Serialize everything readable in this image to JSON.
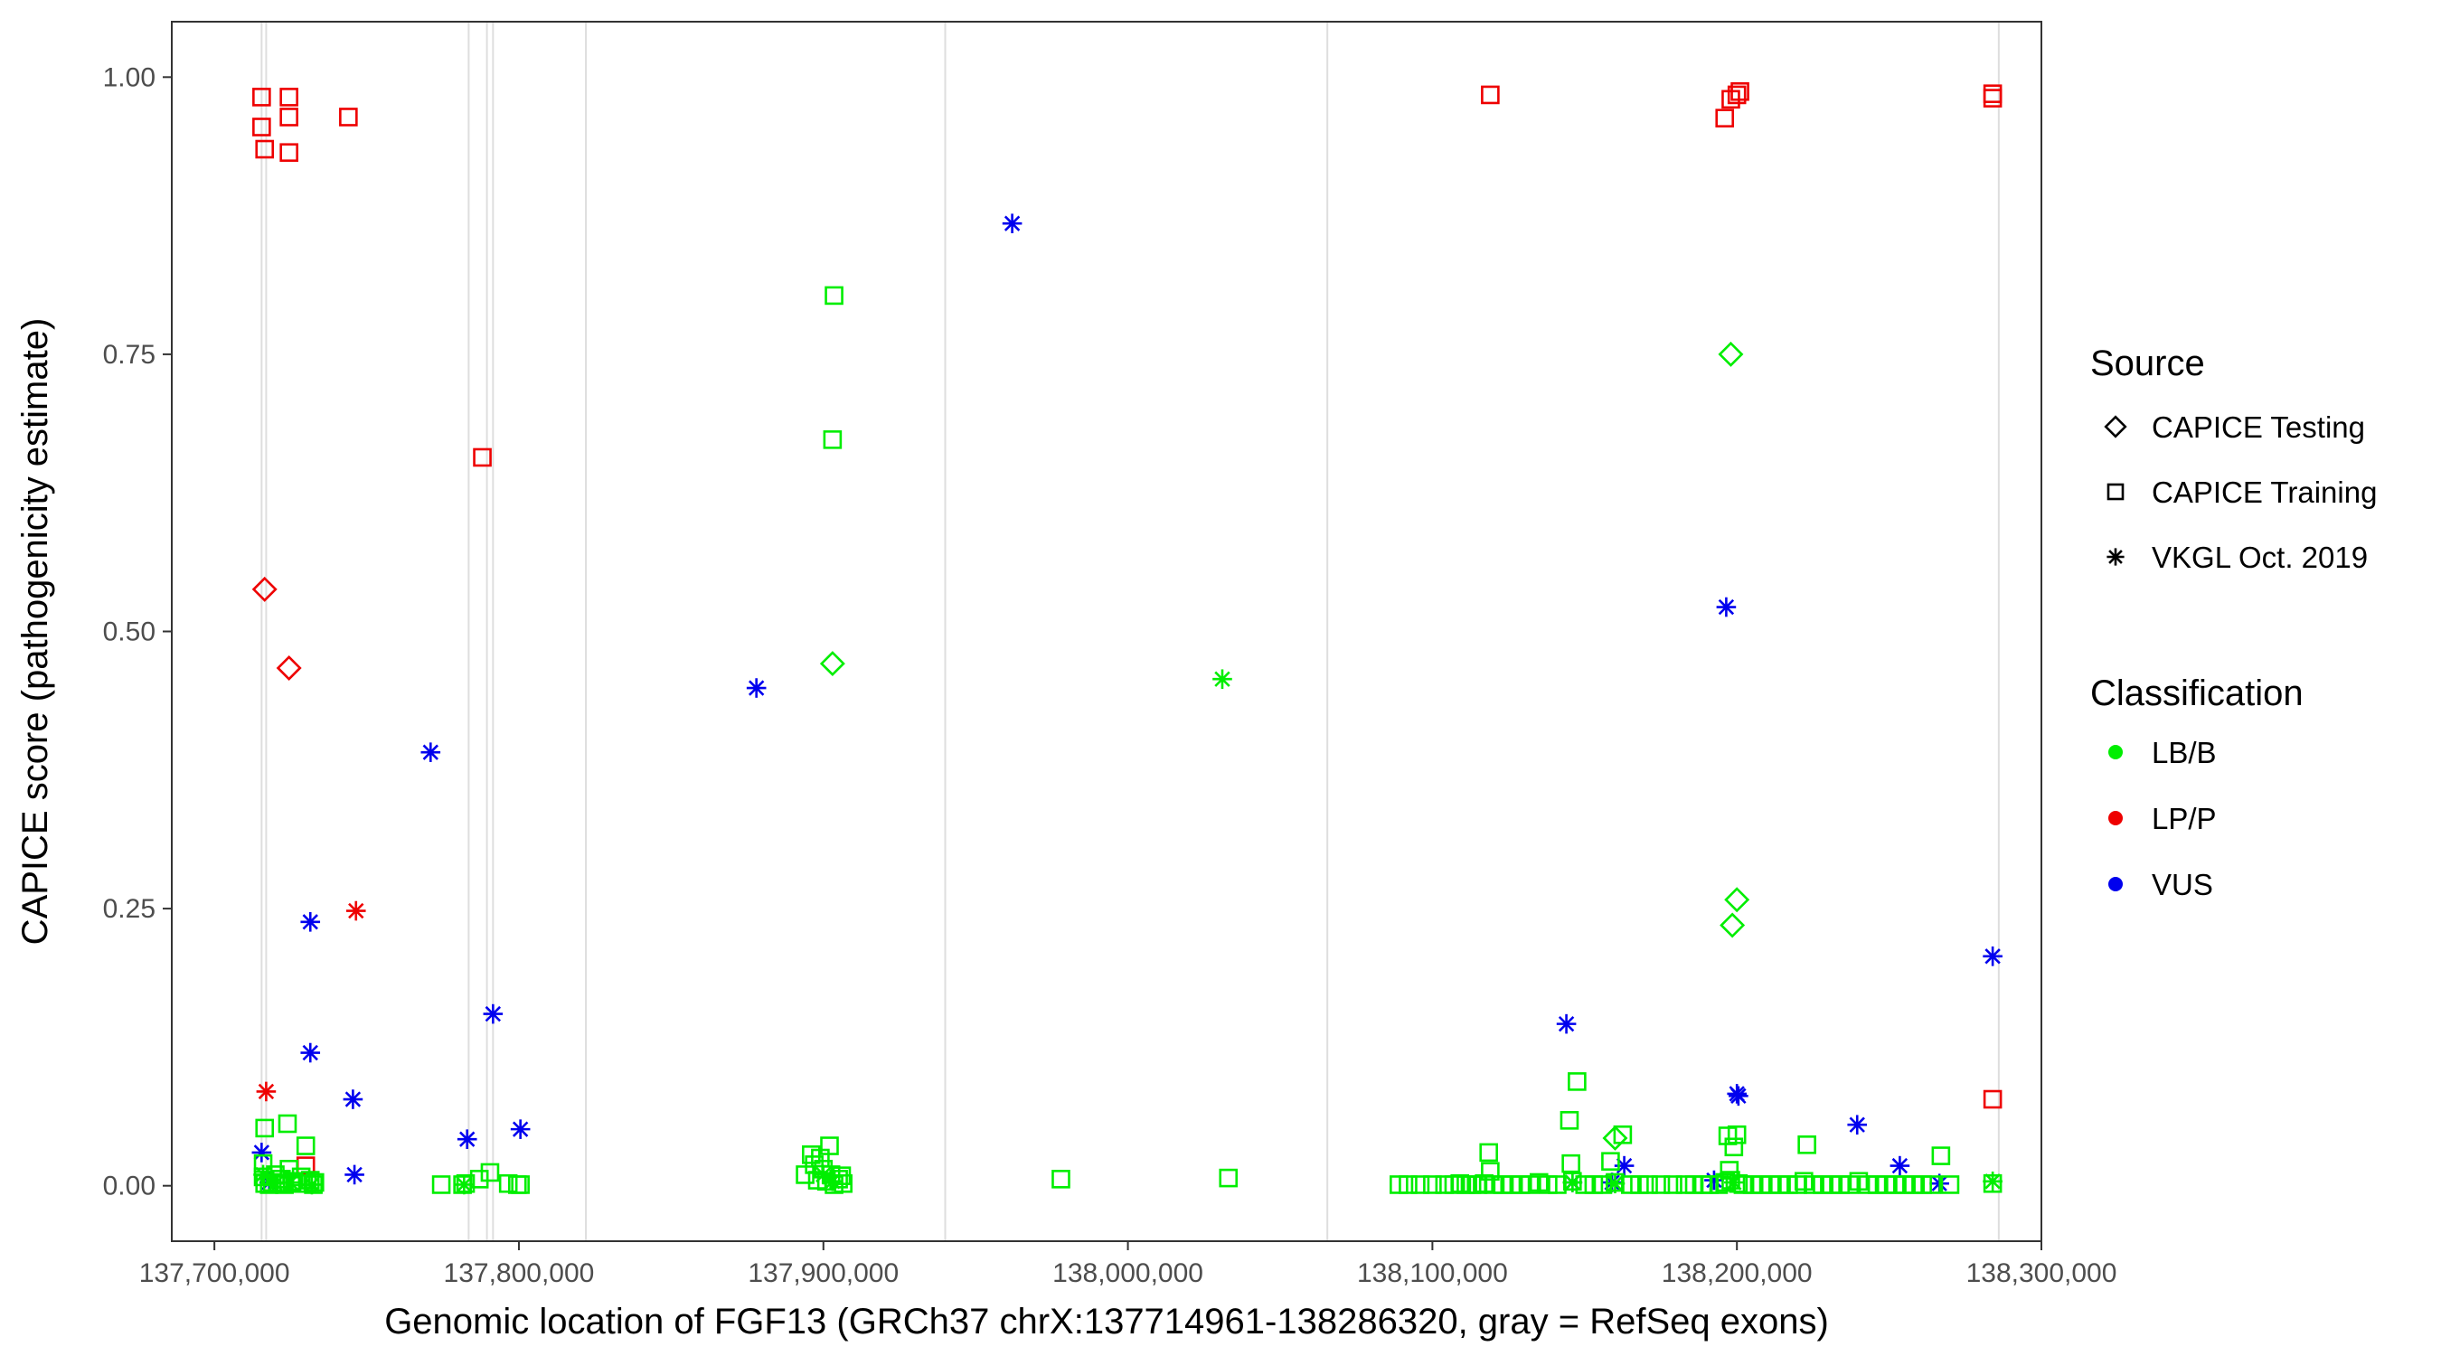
{
  "chart_data": {
    "type": "scatter",
    "title": "",
    "xlabel": "Genomic location of FGF13 (GRCh37 chrX:137714961-138286320, gray = RefSeq exons)",
    "ylabel": "CAPICE score (pathogenicity estimate)",
    "xlim": [
      137686000,
      138300000
    ],
    "ylim": [
      -0.05,
      1.05
    ],
    "x_ticks": [
      137700000,
      137800000,
      137900000,
      138000000,
      138100000,
      138200000,
      138300000
    ],
    "x_tick_labels": [
      "137,700,000",
      "137,800,000",
      "137,900,000",
      "138,000,000",
      "138,100,000",
      "138,200,000",
      "138,300,000"
    ],
    "y_ticks": [
      0,
      0.25,
      0.5,
      0.75,
      1.0
    ],
    "y_tick_labels": [
      "0.00",
      "0.25",
      "0.50",
      "0.75",
      "1.00"
    ],
    "grid": false,
    "exons": [
      137715500,
      137717000,
      137783500,
      137789500,
      137791500,
      137822000,
      137940000,
      138065500,
      138286000
    ],
    "legend_placement": "right",
    "legend": {
      "source_title": "Source",
      "source_items": [
        {
          "label": "CAPICE Testing",
          "shape": "diamond"
        },
        {
          "label": "CAPICE Training",
          "shape": "square"
        },
        {
          "label": "VKGL Oct. 2019",
          "shape": "asterisk"
        }
      ],
      "class_title": "Classification",
      "class_items": [
        {
          "label": "LB/B",
          "color": "#00ee00"
        },
        {
          "label": "LP/P",
          "color": "#ee0000"
        },
        {
          "label": "VUS",
          "color": "#0000ee"
        }
      ]
    },
    "colors": {
      "LB/B": "#00ee00",
      "LP/P": "#ee0000",
      "VUS": "#0000ee"
    },
    "series": [
      {
        "source": "CAPICE Training",
        "classification": "LP/P",
        "points": [
          [
            137715500,
            0.982
          ],
          [
            137715500,
            0.955
          ],
          [
            137716500,
            0.935
          ],
          [
            137724500,
            0.982
          ],
          [
            137724500,
            0.964
          ],
          [
            137724500,
            0.932
          ],
          [
            137744000,
            0.964
          ],
          [
            137788000,
            0.657
          ],
          [
            137730000,
            0.018
          ],
          [
            138119000,
            0.984
          ],
          [
            138196000,
            0.963
          ],
          [
            138198000,
            0.98
          ],
          [
            138200000,
            0.984
          ],
          [
            138201000,
            0.987
          ],
          [
            138284000,
            0.985
          ],
          [
            138284000,
            0.981
          ],
          [
            138284000,
            0.078
          ]
        ]
      },
      {
        "source": "CAPICE Testing",
        "classification": "LP/P",
        "points": [
          [
            137716500,
            0.538
          ],
          [
            137724500,
            0.467
          ]
        ]
      },
      {
        "source": "VKGL Oct. 2019",
        "classification": "LP/P",
        "points": [
          [
            137717000,
            0.085
          ],
          [
            137746500,
            0.248
          ]
        ]
      },
      {
        "source": "VKGL Oct. 2019",
        "classification": "VUS",
        "points": [
          [
            137715500,
            0.03
          ],
          [
            137718000,
            0.003
          ],
          [
            137731500,
            0.238
          ],
          [
            137731500,
            0.12
          ],
          [
            137745500,
            0.078
          ],
          [
            137746000,
            0.01
          ],
          [
            137771000,
            0.391
          ],
          [
            137783000,
            0.042
          ],
          [
            137791500,
            0.155
          ],
          [
            137800500,
            0.051
          ],
          [
            137878000,
            0.449
          ],
          [
            137962000,
            0.868
          ],
          [
            138144000,
            0.146
          ],
          [
            138146000,
            0.003
          ],
          [
            138159000,
            0.003
          ],
          [
            138163000,
            0.018
          ],
          [
            138192500,
            0.005
          ],
          [
            138196500,
            0.522
          ],
          [
            138200000,
            0.083
          ],
          [
            138200500,
            0.081
          ],
          [
            138239500,
            0.055
          ],
          [
            138253500,
            0.018
          ],
          [
            138266500,
            0.002
          ],
          [
            138284000,
            0.207
          ]
        ]
      },
      {
        "source": "VKGL Oct. 2019",
        "classification": "LB/B",
        "points": [
          [
            138031000,
            0.457
          ]
        ]
      },
      {
        "source": "CAPICE Testing",
        "classification": "LB/B",
        "points": [
          [
            137903000,
            0.471
          ],
          [
            138198000,
            0.75
          ],
          [
            138200000,
            0.258
          ],
          [
            138198500,
            0.235
          ],
          [
            138160000,
            0.043
          ]
        ]
      },
      {
        "source": "CAPICE Training",
        "classification": "LB/B",
        "points": [
          [
            137903500,
            0.803
          ],
          [
            137903000,
            0.673
          ],
          [
            137716500,
            0.052
          ],
          [
            137716000,
            0.02
          ],
          [
            137716000,
            0.008
          ],
          [
            137716500,
            0.002
          ],
          [
            137718000,
            0.001
          ],
          [
            137719000,
            0.003
          ],
          [
            137720000,
            0.01
          ],
          [
            137721000,
            0.002
          ],
          [
            137722000,
            0.006
          ],
          [
            137723000,
            0.001
          ],
          [
            137724000,
            0.056
          ],
          [
            137724500,
            0.015
          ],
          [
            137725500,
            0.004
          ],
          [
            137727000,
            0.002
          ],
          [
            137728500,
            0.008
          ],
          [
            137730000,
            0.036
          ],
          [
            137730500,
            0.002
          ],
          [
            137731500,
            0.005
          ],
          [
            137732500,
            0.001
          ],
          [
            137733000,
            0.003
          ],
          [
            137774500,
            0.001
          ],
          [
            137781500,
            0.001
          ],
          [
            137782500,
            0.002
          ],
          [
            137787000,
            0.006
          ],
          [
            137790500,
            0.012
          ],
          [
            137796500,
            0.002
          ],
          [
            137799500,
            0.001
          ],
          [
            137800500,
            0.001
          ],
          [
            137894000,
            0.01
          ],
          [
            137896000,
            0.028
          ],
          [
            137897000,
            0.019
          ],
          [
            137898000,
            0.005
          ],
          [
            137899000,
            0.025
          ],
          [
            137900000,
            0.015
          ],
          [
            137901000,
            0.004
          ],
          [
            137902000,
            0.036
          ],
          [
            137902500,
            0.01
          ],
          [
            137903500,
            0.001
          ],
          [
            137905000,
            0.006
          ],
          [
            137906000,
            0.009
          ],
          [
            137906500,
            0.002
          ],
          [
            137978000,
            0.006
          ],
          [
            138033000,
            0.007
          ],
          [
            138089000,
            0.001
          ],
          [
            138092000,
            0.001
          ],
          [
            138096000,
            0.001
          ],
          [
            138100000,
            0.001
          ],
          [
            138104000,
            0.001
          ],
          [
            138107000,
            0.001
          ],
          [
            138109000,
            0.002
          ],
          [
            138111000,
            0.001
          ],
          [
            138113000,
            0.001
          ],
          [
            138115000,
            0.001
          ],
          [
            138117000,
            0.002
          ],
          [
            138118500,
            0.03
          ],
          [
            138119000,
            0.013
          ],
          [
            138120000,
            0.001
          ],
          [
            138123000,
            0.001
          ],
          [
            138126000,
            0.001
          ],
          [
            138129000,
            0.001
          ],
          [
            138132000,
            0.001
          ],
          [
            138135000,
            0.003
          ],
          [
            138138000,
            0.001
          ],
          [
            138141000,
            0.001
          ],
          [
            138145000,
            0.059
          ],
          [
            138145500,
            0.02
          ],
          [
            138146000,
            0.004
          ],
          [
            138147500,
            0.094
          ],
          [
            138150000,
            0.001
          ],
          [
            138153000,
            0.001
          ],
          [
            138156000,
            0.001
          ],
          [
            138158500,
            0.022
          ],
          [
            138160000,
            0.003
          ],
          [
            138162500,
            0.046
          ],
          [
            138165000,
            0.001
          ],
          [
            138168000,
            0.001
          ],
          [
            138171000,
            0.001
          ],
          [
            138175000,
            0.001
          ],
          [
            138179000,
            0.001
          ],
          [
            138183000,
            0.001
          ],
          [
            138186000,
            0.001
          ],
          [
            138189000,
            0.001
          ],
          [
            138191000,
            0.001
          ],
          [
            138194000,
            0.001
          ],
          [
            138196000,
            0.003
          ],
          [
            138197000,
            0.045
          ],
          [
            138197500,
            0.014
          ],
          [
            138198000,
            0.005
          ],
          [
            138199000,
            0.035
          ],
          [
            138200000,
            0.046
          ],
          [
            138200500,
            0.002
          ],
          [
            138202000,
            0.001
          ],
          [
            138205000,
            0.001
          ],
          [
            138208000,
            0.001
          ],
          [
            138211000,
            0.001
          ],
          [
            138214000,
            0.001
          ],
          [
            138217000,
            0.001
          ],
          [
            138220000,
            0.001
          ],
          [
            138222000,
            0.004
          ],
          [
            138223000,
            0.037
          ],
          [
            138225000,
            0.001
          ],
          [
            138228000,
            0.001
          ],
          [
            138231000,
            0.001
          ],
          [
            138234000,
            0.001
          ],
          [
            138237000,
            0.001
          ],
          [
            138240000,
            0.004
          ],
          [
            138243000,
            0.001
          ],
          [
            138246000,
            0.001
          ],
          [
            138249000,
            0.001
          ],
          [
            138252000,
            0.001
          ],
          [
            138255000,
            0.001
          ],
          [
            138258000,
            0.001
          ],
          [
            138261000,
            0.001
          ],
          [
            138264000,
            0.001
          ],
          [
            138267000,
            0.027
          ],
          [
            138270000,
            0.001
          ],
          [
            138284000,
            0.002
          ]
        ]
      },
      {
        "source": "VKGL Oct. 2019",
        "classification": "LB/B",
        "points": [
          [
            137716000,
            0.01
          ],
          [
            137720000,
            0.002
          ],
          [
            137725000,
            0.003
          ],
          [
            137732000,
            0.001
          ],
          [
            137782000,
            0.001
          ],
          [
            137900000,
            0.01
          ],
          [
            137903000,
            0.004
          ],
          [
            138146000,
            0.003
          ],
          [
            138160000,
            0.002
          ],
          [
            138199000,
            0.003
          ],
          [
            138284000,
            0.004
          ]
        ]
      }
    ]
  }
}
